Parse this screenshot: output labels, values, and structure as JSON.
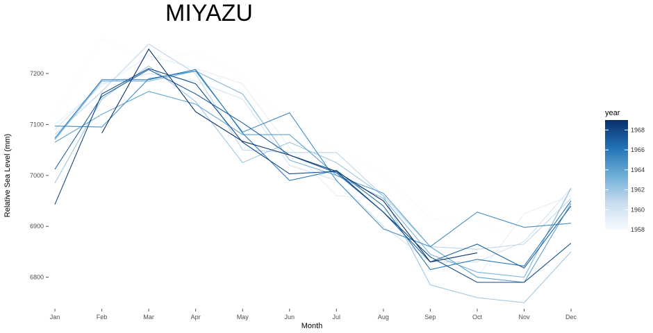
{
  "chart_data": {
    "type": "line",
    "title": "MIYAZU",
    "xlabel": "Month",
    "ylabel": "Relative Sea Level (mm)",
    "categories": [
      "Jan",
      "Feb",
      "Mar",
      "Apr",
      "May",
      "Jun",
      "Jul",
      "Aug",
      "Sep",
      "Oct",
      "Nov",
      "Dec"
    ],
    "ylim": [
      6745,
      7290
    ],
    "yticks": [
      6800,
      6900,
      7000,
      7100,
      7200
    ],
    "grid": false,
    "legend": {
      "title": "year",
      "placement": "right",
      "type": "colorbar",
      "range": [
        1958,
        1969
      ],
      "ticks": [
        1958,
        1960,
        1962,
        1964,
        1966,
        1968
      ],
      "low_color": "#f7fbff",
      "high_color": "#08306b"
    },
    "series": [
      {
        "year": 1958,
        "values": [
          7120,
          7268,
          7228,
          7240,
          7195,
          7090,
          7050,
          7005,
          6915,
          6910,
          6870,
          6965
        ]
      },
      {
        "year": 1959,
        "values": [
          7100,
          7175,
          7235,
          7210,
          7180,
          7055,
          6960,
          6955,
          6860,
          6800,
          6925,
          6960
        ]
      },
      {
        "year": 1960,
        "values": [
          7090,
          7180,
          7200,
          7185,
          7150,
          7020,
          6990,
          6900,
          6830,
          6830,
          6870,
          6975
        ]
      },
      {
        "year": 1961,
        "values": [
          7080,
          7165,
          7258,
          7200,
          7050,
          7045,
          7045,
          6960,
          6860,
          6855,
          6865,
          6955
        ]
      },
      {
        "year": 1962,
        "values": [
          6985,
          7150,
          7215,
          7145,
          7025,
          7065,
          7025,
          6960,
          6785,
          6760,
          6750,
          6850
        ]
      },
      {
        "year": 1963,
        "values": [
          7070,
          7185,
          7185,
          7205,
          7160,
          7030,
          7000,
          6955,
          6845,
          6810,
          6800,
          6975
        ]
      },
      {
        "year": 1964,
        "values": [
          7065,
          7120,
          7165,
          7140,
          7080,
          7080,
          7000,
          6965,
          6860,
          6800,
          6790,
          6945
        ]
      },
      {
        "year": 1965,
        "values": [
          7097,
          7095,
          7190,
          7205,
          7085,
          7123,
          6990,
          6895,
          6860,
          6928,
          6898,
          6906
        ]
      },
      {
        "year": 1966,
        "values": [
          7073,
          7188,
          7188,
          7208,
          7083,
          6990,
          7010,
          6940,
          6815,
          6835,
          6822,
          6950
        ]
      },
      {
        "year": 1967,
        "values": [
          7012,
          7155,
          7208,
          7160,
          7103,
          7040,
          7005,
          6928,
          6830,
          6865,
          6818,
          6940
        ]
      },
      {
        "year": 1968,
        "values": [
          6943,
          7160,
          7210,
          7180,
          7065,
          7003,
          7008,
          6928,
          6840,
          6790,
          6790,
          6867
        ]
      },
      {
        "year": 1969,
        "values": [
          null,
          7083,
          7248,
          7125,
          7067,
          7040,
          7008,
          6950,
          6830,
          6848,
          null,
          null
        ]
      }
    ]
  }
}
